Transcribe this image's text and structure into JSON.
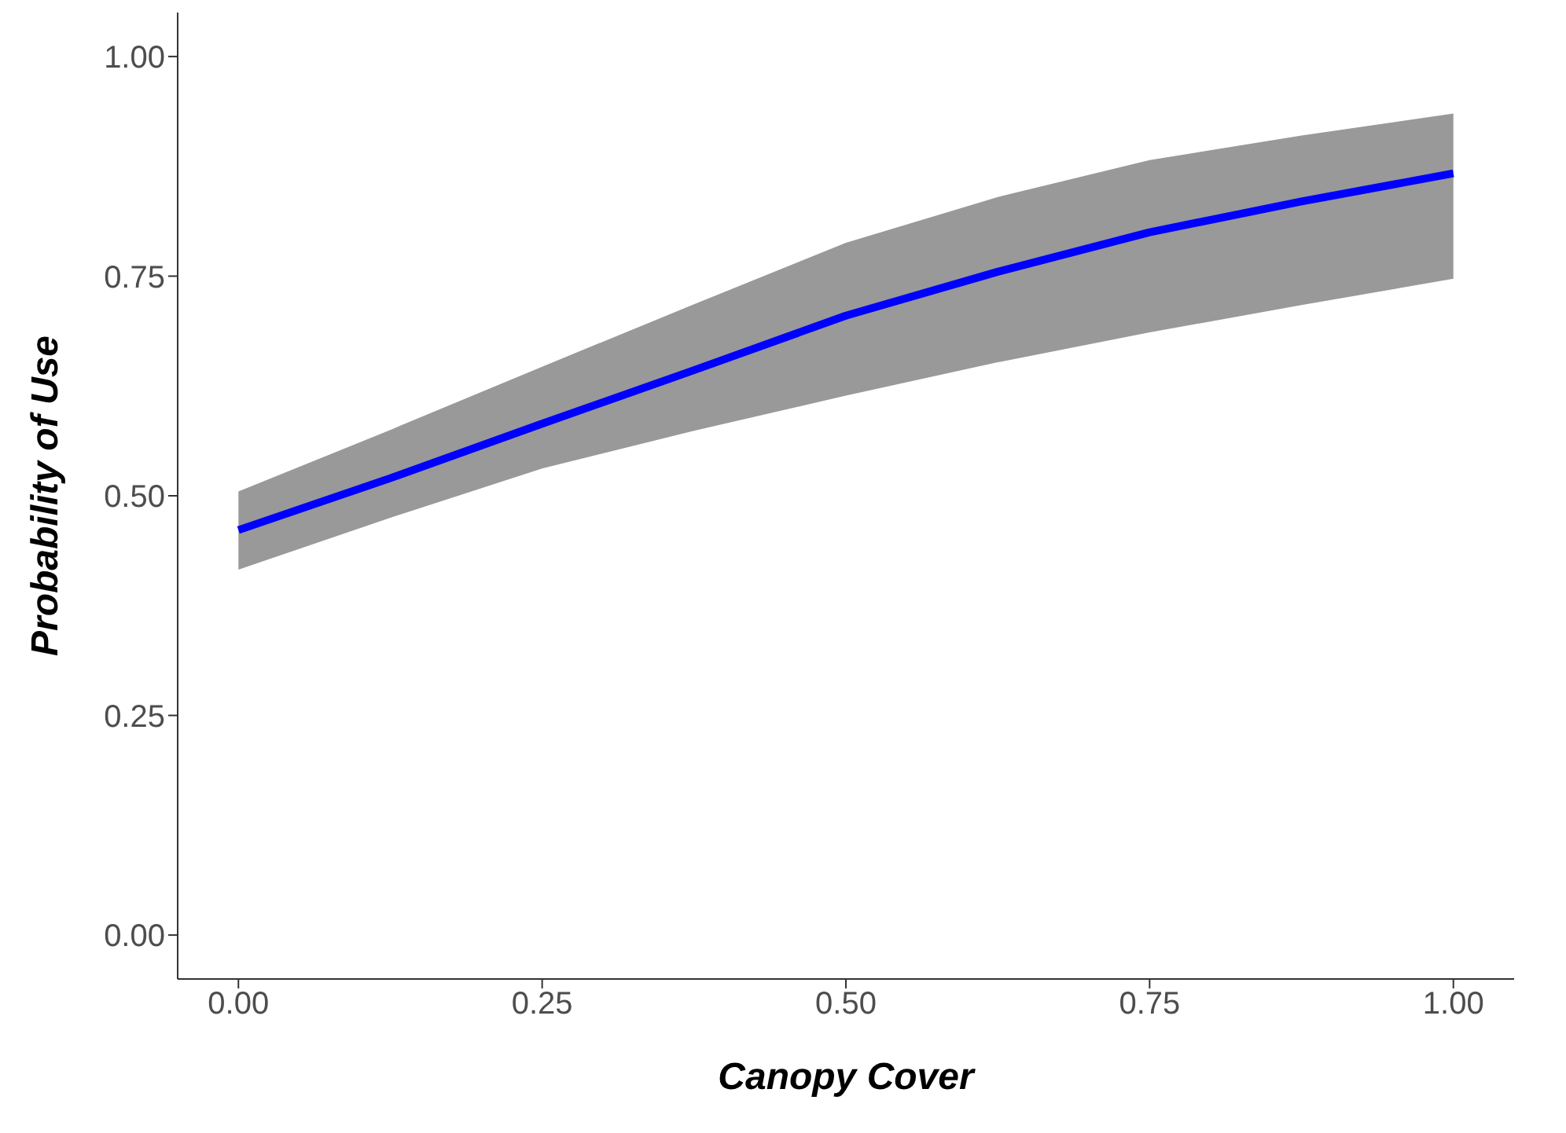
{
  "chart_data": {
    "type": "line",
    "xlabel": "Canopy Cover",
    "ylabel": "Probability of Use",
    "x": [
      0,
      0.125,
      0.25,
      0.375,
      0.5,
      0.625,
      0.75,
      0.875,
      1
    ],
    "series": [
      {
        "color": "#0000ff",
        "values": [
          0.461,
          0.52,
          0.582,
          0.643,
          0.705,
          0.755,
          0.8,
          0.835,
          0.867
        ],
        "lower": [
          0.416,
          0.475,
          0.531,
          0.574,
          0.614,
          0.652,
          0.686,
          0.717,
          0.747
        ],
        "upper": [
          0.505,
          0.575,
          0.647,
          0.718,
          0.788,
          0.84,
          0.882,
          0.91,
          0.935
        ]
      }
    ],
    "xlim": [
      -0.05,
      1.05
    ],
    "ylim": [
      -0.05,
      1.05
    ],
    "xticks": [
      {
        "value": 0,
        "label": "0.00"
      },
      {
        "value": 0.25,
        "label": "0.25"
      },
      {
        "value": 0.5,
        "label": "0.50"
      },
      {
        "value": 0.75,
        "label": "0.75"
      },
      {
        "value": 1,
        "label": "1.00"
      }
    ],
    "yticks": [
      {
        "value": 0,
        "label": "0.00"
      },
      {
        "value": 0.25,
        "label": "0.25"
      },
      {
        "value": 0.5,
        "label": "0.50"
      },
      {
        "value": 0.75,
        "label": "0.75"
      },
      {
        "value": 1,
        "label": "1.00"
      }
    ],
    "grid": false,
    "legend": false,
    "marker": "none",
    "line_style": "solid"
  }
}
